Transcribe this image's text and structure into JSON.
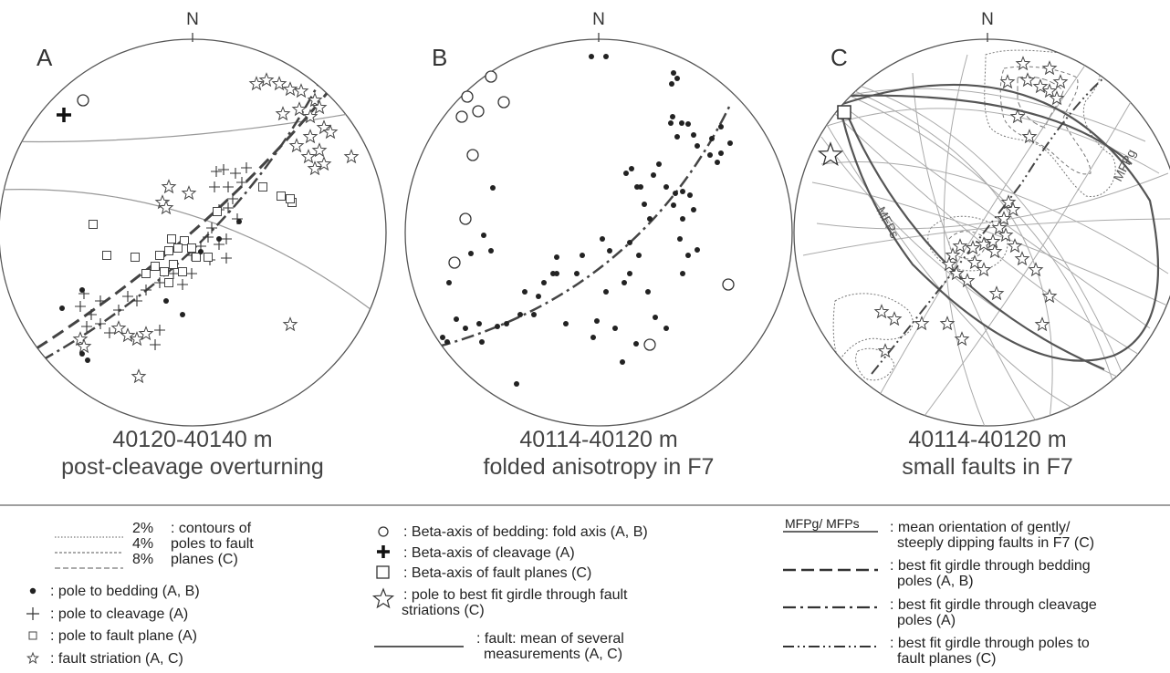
{
  "panels": [
    {
      "letter": "A",
      "north": "N",
      "depth": "40120-40140 m",
      "caption": "post-cleavage overturning"
    },
    {
      "letter": "B",
      "north": "N",
      "depth": "40114-40120 m",
      "caption": "folded anisotropy in F7"
    },
    {
      "letter": "C",
      "north": "N",
      "depth": "40114-40120 m",
      "caption": "small faults in F7"
    }
  ],
  "net_labels": {
    "mfps": "MFPs",
    "mfpg": "MFPg"
  },
  "legend": {
    "contours": {
      "levels": [
        "2%",
        "4%",
        "8%"
      ],
      "line1": ": contours of",
      "line2": "poles to fault",
      "line3": "planes (C)"
    },
    "col1": [
      {
        "symbol": "dot",
        "text": ": pole to bedding (A, B)"
      },
      {
        "symbol": "plus",
        "text": ": pole to cleavage (A)"
      },
      {
        "symbol": "small-square",
        "text": ": pole to fault plane (A)"
      },
      {
        "symbol": "small-star",
        "text": ": fault striation (A, C)"
      }
    ],
    "col2": [
      {
        "symbol": "circle",
        "lines": [
          ": Beta-axis of bedding: fold axis (A, B)"
        ]
      },
      {
        "symbol": "bold-cross",
        "lines": [
          ": Beta-axis of cleavage (A)"
        ]
      },
      {
        "symbol": "square",
        "lines": [
          ": Beta-axis of fault planes (C)"
        ]
      },
      {
        "symbol": "star",
        "lines": [
          ": pole to best fit girdle through fault",
          "striations (C)"
        ]
      },
      {
        "symbol": "solid-line",
        "lines": [
          ": fault: mean of several",
          "measurements (A, C)"
        ]
      }
    ],
    "col3": [
      {
        "symbol": "mfp-line",
        "key": "MFPg/ MFPs",
        "lines": [
          ": mean orientation of gently/",
          "steeply dipping faults in F7 (C)"
        ]
      },
      {
        "symbol": "dashed",
        "lines": [
          ": best fit girdle through bedding",
          "poles (A, B)"
        ]
      },
      {
        "symbol": "dash-dot",
        "lines": [
          ": best fit girdle through cleavage",
          "poles (A)"
        ]
      },
      {
        "symbol": "dash-dot-dot",
        "lines": [
          ": best fit girdle through poles to",
          "fault planes (C)"
        ]
      }
    ]
  }
}
